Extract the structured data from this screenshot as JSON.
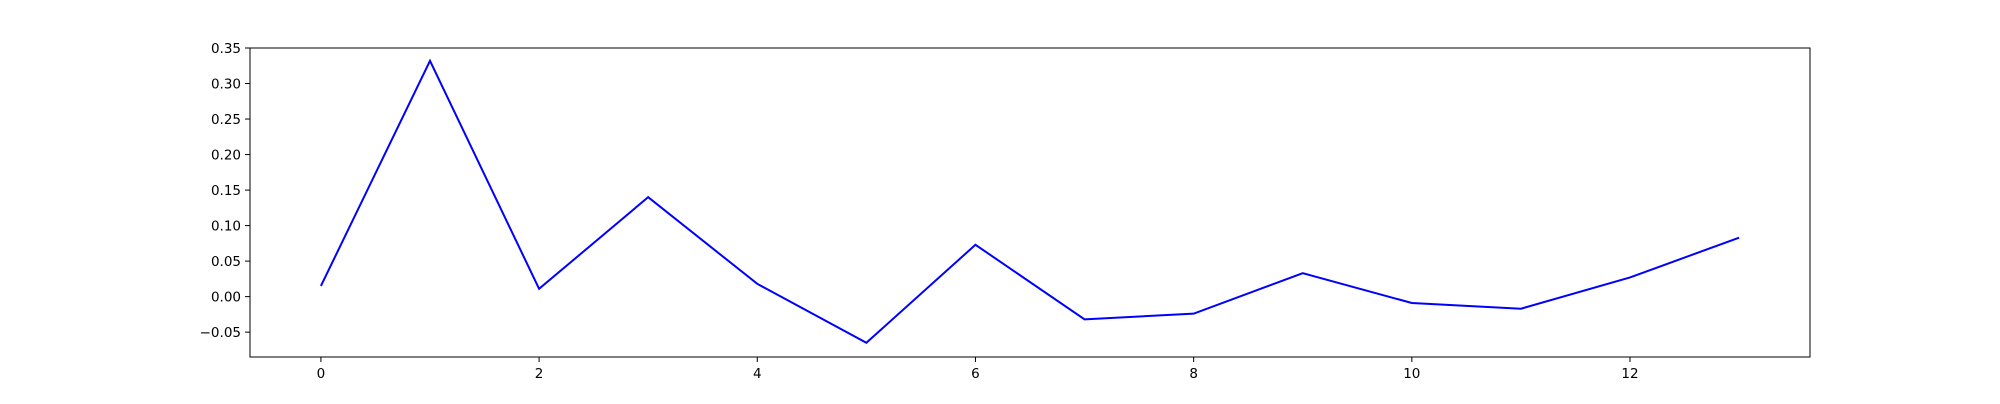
{
  "chart_data": {
    "type": "line",
    "title": "",
    "xlabel": "",
    "ylabel": "",
    "xlim": [
      -0.65,
      13.65
    ],
    "ylim": [
      -0.085,
      0.35
    ],
    "xticks": [
      0,
      2,
      4,
      6,
      8,
      10,
      12
    ],
    "xtick_labels": [
      "0",
      "2",
      "4",
      "6",
      "8",
      "10",
      "12"
    ],
    "yticks": [
      -0.05,
      0.0,
      0.05,
      0.1,
      0.15,
      0.2,
      0.25,
      0.3,
      0.35
    ],
    "ytick_labels": [
      "−0.05",
      "0.00",
      "0.05",
      "0.10",
      "0.15",
      "0.20",
      "0.25",
      "0.30",
      "0.35"
    ],
    "grid": false,
    "legend": "none",
    "series": [
      {
        "color": "#0000ff",
        "x": [
          0,
          1,
          2,
          3,
          4,
          5,
          6,
          7,
          8,
          9,
          10,
          11,
          12,
          13
        ],
        "y": [
          0.015,
          0.332,
          0.011,
          0.14,
          0.018,
          -0.065,
          0.073,
          -0.032,
          -0.024,
          0.033,
          -0.009,
          -0.017,
          0.027,
          0.083
        ]
      }
    ]
  }
}
